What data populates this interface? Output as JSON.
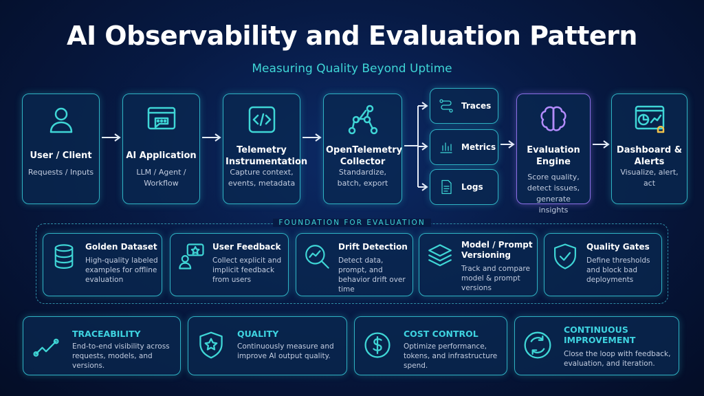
{
  "title": "AI Observability and Evaluation Pattern",
  "subtitle": "Measuring Quality Beyond Uptime",
  "pipeline": [
    {
      "title": "User / Client",
      "desc": "Requests / Inputs"
    },
    {
      "title": "AI Application",
      "desc": "LLM / Agent / Workflow"
    },
    {
      "title": "Telemetry Instrumentation",
      "desc": "Capture context, events, metadata"
    },
    {
      "title": "OpenTelemetry Collector",
      "desc": "Standardize, batch, export"
    },
    {
      "title": "Evaluation Engine",
      "desc": "Score quality, detect issues, generate insights"
    },
    {
      "title": "Dashboard & Alerts",
      "desc": "Visualize, alert, act"
    }
  ],
  "signals": [
    "Traces",
    "Metrics",
    "Logs"
  ],
  "foundation": {
    "label": "FOUNDATION FOR EVALUATION",
    "items": [
      {
        "title": "Golden Dataset",
        "desc": "High-quality labeled examples for offline evaluation"
      },
      {
        "title": "User Feedback",
        "desc": "Collect explicit and implicit feedback from users"
      },
      {
        "title": "Drift Detection",
        "desc": "Detect data, prompt, and behavior drift over time"
      },
      {
        "title": "Model / Prompt Versioning",
        "desc": "Track and compare model & prompt versions"
      },
      {
        "title": "Quality Gates",
        "desc": "Define thresholds and block bad deployments"
      }
    ]
  },
  "benefits": [
    {
      "title": "TRACEABILITY",
      "desc": "End-to-end visibility across requests, models, and versions."
    },
    {
      "title": "QUALITY",
      "desc": "Continuously measure and improve AI output quality."
    },
    {
      "title": "COST CONTROL",
      "desc": "Optimize performance, tokens, and infrastructure spend."
    },
    {
      "title": "CONTINUOUS IMPROVEMENT",
      "desc": "Close the loop with feedback, evaluation, and iteration."
    }
  ]
}
